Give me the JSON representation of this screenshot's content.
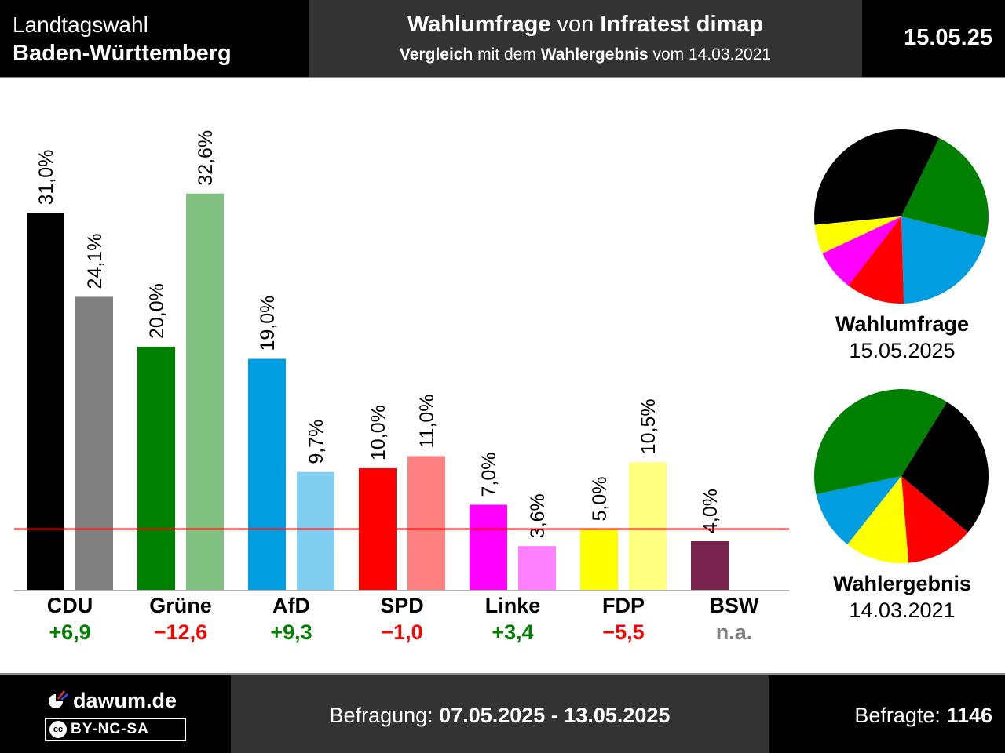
{
  "header": {
    "election_label": "Landtagswahl",
    "region": "Baden-Württemberg",
    "title_bold1": "Wahlumfrage",
    "title_mid": "von",
    "title_bold2": "Infratest dimap",
    "subtitle_bold1": "Vergleich",
    "subtitle_mid": "mit dem",
    "subtitle_bold2": "Wahlergebnis",
    "subtitle_end": "vom 14.03.2021",
    "date": "15.05.25"
  },
  "chart_data": {
    "type": "bar",
    "categories": [
      "CDU",
      "Grüne",
      "AfD",
      "SPD",
      "Linke",
      "FDP",
      "BSW"
    ],
    "series": [
      {
        "values": [
          31.0,
          20.0,
          19.0,
          10.0,
          7.0,
          5.0,
          4.0
        ],
        "labels": [
          "31,0%",
          "20,0%",
          "19,0%",
          "10,0%",
          "7,0%",
          "5,0%",
          "4,0%"
        ]
      },
      {
        "values": [
          24.1,
          32.6,
          9.7,
          11.0,
          3.6,
          10.5,
          null
        ],
        "labels": [
          "24,1%",
          "32,6%",
          "9,7%",
          "11,0%",
          "3,6%",
          "10,5%",
          ""
        ]
      }
    ],
    "differences": [
      "+6,9",
      "−12,6",
      "+9,3",
      "−1,0",
      "+3,4",
      "−5,5",
      "n.a."
    ],
    "difference_colors": [
      "#008000",
      "#ff0000",
      "#008000",
      "#ff0000",
      "#008000",
      "#ff0000",
      "#808080"
    ],
    "colors_poll": [
      "#000000",
      "#008000",
      "#009ee0",
      "#ff0000",
      "#ff00ff",
      "#ffff00",
      "#7b2450"
    ],
    "colors_result": [
      "#808080",
      "#80c080",
      "#80cff0",
      "#ff8080",
      "#ff80ff",
      "#ffff80",
      "#c090a8"
    ],
    "threshold": 5,
    "threshold_color": "#ff0000",
    "ylim": [
      0,
      35
    ],
    "grid": false
  },
  "pies": [
    {
      "label": "Wahlumfrage",
      "date": "15.05.2025",
      "slices": [
        {
          "party": "CDU",
          "value": 31.0,
          "color": "#000000"
        },
        {
          "party": "Grüne",
          "value": 20.0,
          "color": "#008000"
        },
        {
          "party": "AfD",
          "value": 19.0,
          "color": "#009ee0"
        },
        {
          "party": "SPD",
          "value": 10.0,
          "color": "#ff0000"
        },
        {
          "party": "Linke",
          "value": 7.0,
          "color": "#ff00ff"
        },
        {
          "party": "FDP",
          "value": 5.0,
          "color": "#ffff00"
        }
      ]
    },
    {
      "label": "Wahlergebnis",
      "date": "14.03.2021",
      "slices": [
        {
          "party": "CDU",
          "value": 24.1,
          "color": "#000000"
        },
        {
          "party": "SPD",
          "value": 11.0,
          "color": "#ff0000"
        },
        {
          "party": "FDP",
          "value": 10.5,
          "color": "#ffff00"
        },
        {
          "party": "AfD",
          "value": 9.7,
          "color": "#009ee0"
        },
        {
          "party": "Grüne",
          "value": 32.6,
          "color": "#008000"
        }
      ]
    }
  ],
  "footer": {
    "site": "dawum.de",
    "license": "BY-NC-SA",
    "cc_mark": "cc",
    "fieldwork_label": "Befragung:",
    "fieldwork_value": "07.05.2025 - 13.05.2025",
    "respondents_label": "Befragte:",
    "respondents_value": "1146"
  }
}
